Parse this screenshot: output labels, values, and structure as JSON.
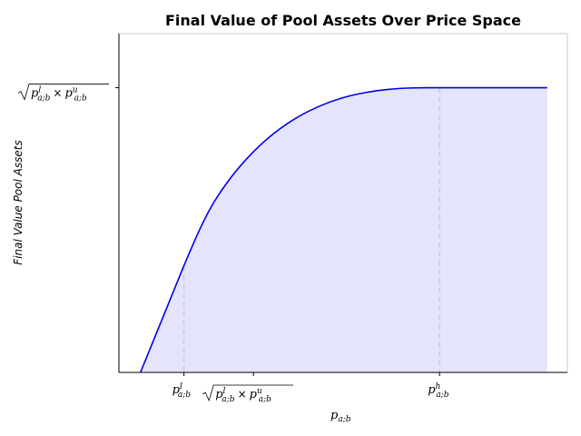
{
  "chart_data": {
    "type": "area",
    "title": "Final Value of Pool Assets Over Price Space",
    "xlabel": "p_{a;b}",
    "ylabel": "Final Value Pool Assets",
    "xlim": [
      0,
      1
    ],
    "ylim": [
      0,
      1.19
    ],
    "grid": false,
    "legend": "none",
    "x_ticks": [
      {
        "value": 0.145,
        "label": "p^l_{a;b}"
      },
      {
        "value": 0.3,
        "label": "sqrt(p^l_{a;b} × p^u_{a;b})"
      },
      {
        "value": 0.715,
        "label": "p^h_{a;b}"
      }
    ],
    "y_ticks": [
      {
        "value": 1.0,
        "label": "sqrt(p^l_{a;b} × p^u_{a;b})"
      }
    ],
    "reference_lines": [
      {
        "x": 0.145,
        "y_top": 0.375
      },
      {
        "x": 0.715,
        "y_top": 1.0
      }
    ],
    "series": [
      {
        "x": [
          0.048,
          0.145,
          0.2,
          0.25,
          0.3,
          0.35,
          0.4,
          0.45,
          0.5,
          0.55,
          0.6,
          0.65,
          0.7,
          0.715,
          0.8,
          0.9,
          1.0
        ],
        "values": [
          0.0,
          0.375,
          0.565,
          0.685,
          0.775,
          0.845,
          0.898,
          0.937,
          0.965,
          0.983,
          0.994,
          0.999,
          1.0,
          1.0,
          1.0,
          1.0,
          1.0
        ]
      }
    ],
    "colors": {
      "line": "#0000ee",
      "fill": "#e4e4fa",
      "reference": "#c8c8f0",
      "axis": "#000000"
    }
  }
}
